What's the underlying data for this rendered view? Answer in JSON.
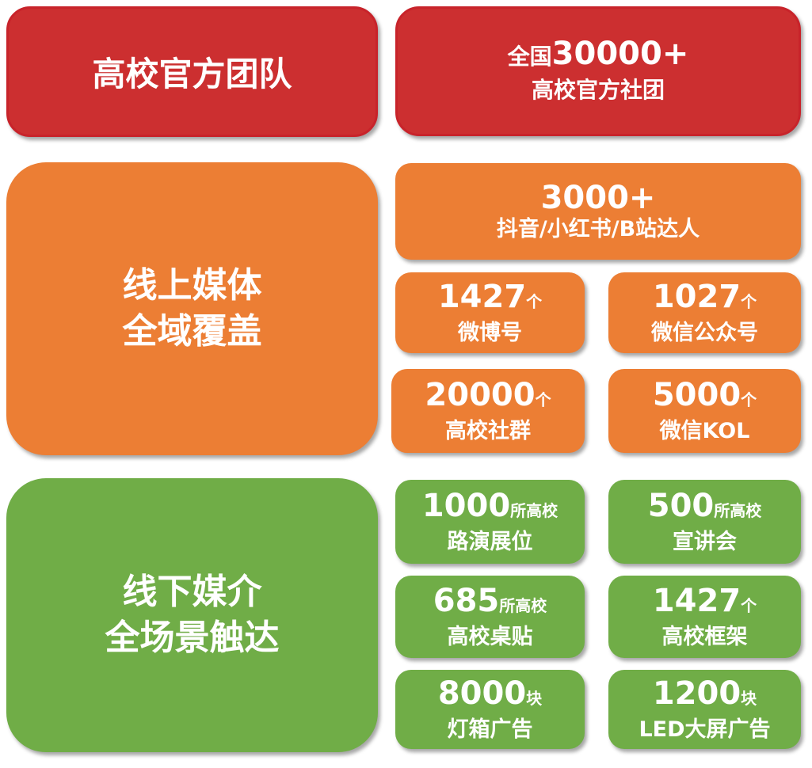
{
  "colors": {
    "red": "#cc2f30",
    "orange": "#ec7e34",
    "green": "#70ad47"
  },
  "team": {
    "title": "高校官方团队",
    "stat_line1_prefix": "全国",
    "stat_line1_number": "30000+",
    "stat_line2": "高校官方社团"
  },
  "online": {
    "title_line1": "线上媒体",
    "title_line2": "全域覆盖",
    "top": {
      "number": "3000+",
      "label": "抖音/小红书/B站达人"
    },
    "items": [
      {
        "number": "1427",
        "unit": "个",
        "label": "微博号"
      },
      {
        "number": "1027",
        "unit": "个",
        "label": "微信公众号"
      },
      {
        "number": "20000",
        "unit": "个",
        "label": "高校社群"
      },
      {
        "number": "5000",
        "unit": "个",
        "label": "微信KOL"
      }
    ]
  },
  "offline": {
    "title_line1": "线下媒介",
    "title_line2": "全场景触达",
    "items": [
      {
        "number": "1000",
        "unit": "所高校",
        "label": "路演展位"
      },
      {
        "number": "500",
        "unit": "所高校",
        "label": "宣讲会"
      },
      {
        "number": "685",
        "unit": "所高校",
        "label": "高校桌贴"
      },
      {
        "number": "1427",
        "unit": "个",
        "label": "高校框架"
      },
      {
        "number": "8000",
        "unit": "块",
        "label": "灯箱广告"
      },
      {
        "number": "1200",
        "unit": "块",
        "label": "LED大屏广告"
      }
    ]
  }
}
